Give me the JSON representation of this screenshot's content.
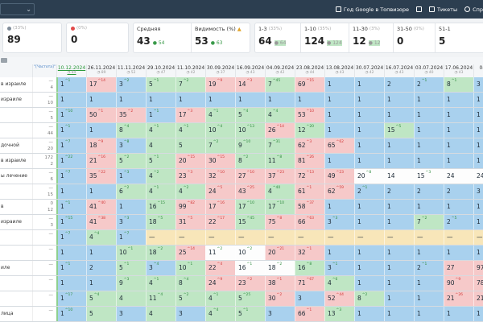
{
  "topbar": {
    "links": [
      {
        "label": "Год Google в Топвизоре",
        "icon": "list-icon"
      },
      {
        "label": "",
        "icon": "cloud-icon"
      },
      {
        "label": "Тикеты",
        "icon": "mail-icon"
      },
      {
        "label": "Спр",
        "icon": "help-icon"
      }
    ]
  },
  "stats": {
    "cards": [
      {
        "label": "(33%)",
        "value": "89",
        "dot": "#7f8c99"
      },
      {
        "label": "(0%)",
        "value": "0",
        "dot": "#e14a4a"
      },
      {
        "label": "Средняя",
        "value": "43",
        "delta": "54",
        "delta_color": "#3a9a4a"
      },
      {
        "label": "Видимость (%)",
        "value": "53",
        "delta": "63",
        "delta_color": "#3a9a4a"
      }
    ],
    "segments": [
      {
        "label": "1-3",
        "sub": "(33%)",
        "value": "64",
        "delta": "64"
      },
      {
        "label": "1-10",
        "sub": "(35%)",
        "value": "124",
        "delta": "124"
      },
      {
        "label": "11-30",
        "sub": "(3%)",
        "value": "12",
        "delta": "12"
      },
      {
        "label": "31-50",
        "sub": "(0%)",
        "value": "0",
        "delta": ""
      },
      {
        "label": "51-1",
        "sub": "",
        "value": "5",
        "delta": ""
      }
    ]
  },
  "header": {
    "freq_label": "\"[Частота]\"",
    "dates": [
      "10.12.2024",
      "26.11.2024",
      "11.11.2024",
      "29.10.2024",
      "11.10.2024",
      "30.09.2024",
      "16.09.2024",
      "04.09.2024",
      "23.08.2024",
      "13.08.2024",
      "30.07.2024",
      "16.07.2024",
      "03.07.2024",
      "17.06.2024",
      "04.06.2"
    ],
    "date_subs": [
      "84",
      "89",
      "52",
      "47",
      "42",
      "37",
      "43",
      "42",
      "44",
      "43",
      "42",
      "43",
      "40",
      "43",
      "38"
    ]
  },
  "rows": [
    {
      "kw": "в израиле",
      "freq": [
        "—",
        "4"
      ],
      "cells": [
        [
          "1",
          "^1",
          "b"
        ],
        [
          "17",
          "^14",
          "p"
        ],
        [
          "3",
          "^2",
          "b"
        ],
        [
          "5",
          "^1",
          "g"
        ],
        [
          "7",
          "^2",
          "g"
        ],
        [
          "19",
          "^9",
          "p"
        ],
        [
          "14",
          "^3",
          "p"
        ],
        [
          "7",
          "^45",
          "g"
        ],
        [
          "69",
          "^15",
          "p"
        ],
        [
          "1",
          "",
          "b"
        ],
        [
          "1",
          "",
          "b"
        ],
        [
          "2",
          "",
          "b"
        ],
        [
          "2",
          "^1",
          "b"
        ],
        [
          "8",
          "^1",
          "g"
        ],
        [
          "3",
          "",
          "b"
        ]
      ]
    },
    {
      "kw": "израиле",
      "freq": [
        "—",
        "10"
      ],
      "cells": [
        [
          "1",
          "",
          "b"
        ],
        [
          "1",
          "",
          "b"
        ],
        [
          "1",
          "",
          "b"
        ],
        [
          "1",
          "",
          "b"
        ],
        [
          "1",
          "",
          "b"
        ],
        [
          "1",
          "",
          "b"
        ],
        [
          "1",
          "",
          "b"
        ],
        [
          "1",
          "",
          "b"
        ],
        [
          "1",
          "",
          "b"
        ],
        [
          "1",
          "",
          "b"
        ],
        [
          "1",
          "",
          "b"
        ],
        [
          "1",
          "",
          "b"
        ],
        [
          "1",
          "",
          "b"
        ],
        [
          "1",
          "",
          "b"
        ],
        [
          "1",
          "",
          "b"
        ]
      ]
    },
    {
      "kw": "",
      "freq": [
        "—",
        "5"
      ],
      "cells": [
        [
          "1",
          "^10",
          "b"
        ],
        [
          "50",
          "^1",
          "p"
        ],
        [
          "35",
          "^2",
          "p"
        ],
        [
          "1",
          "^1",
          "b"
        ],
        [
          "17",
          "^3",
          "p"
        ],
        [
          "4",
          "^1",
          "g"
        ],
        [
          "5",
          "^4",
          "g"
        ],
        [
          "4",
          "^4",
          "g"
        ],
        [
          "53",
          "^10",
          "p"
        ],
        [
          "1",
          "",
          "b"
        ],
        [
          "1",
          "",
          "b"
        ],
        [
          "1",
          "",
          "b"
        ],
        [
          "1",
          "",
          "b"
        ],
        [
          "1",
          "",
          "b"
        ],
        [
          "1",
          "",
          "b"
        ]
      ]
    },
    {
      "kw": "",
      "freq": [
        "—",
        "44"
      ],
      "cells": [
        [
          "1",
          "^1",
          "b"
        ],
        [
          "1",
          "",
          "b"
        ],
        [
          "8",
          "^4",
          "g"
        ],
        [
          "4",
          "^1",
          "g"
        ],
        [
          "4",
          "^1",
          "g"
        ],
        [
          "10",
          "^4",
          "g"
        ],
        [
          "10",
          "^13",
          "g"
        ],
        [
          "26",
          "^14",
          "p"
        ],
        [
          "12",
          "^20",
          "g"
        ],
        [
          "1",
          "",
          "b"
        ],
        [
          "1",
          "",
          "b"
        ],
        [
          "15",
          "^5",
          "g"
        ],
        [
          "1",
          "",
          "b"
        ],
        [
          "1",
          "",
          "b"
        ],
        [
          "1",
          "",
          "b"
        ]
      ]
    },
    {
      "kw": "дочной",
      "freq": [
        "—",
        "20"
      ],
      "cells": [
        [
          "1",
          "^7",
          "b"
        ],
        [
          "18",
          "^9",
          "p"
        ],
        [
          "3",
          "^8",
          "b"
        ],
        [
          "4",
          "",
          "g"
        ],
        [
          "5",
          "",
          "g"
        ],
        [
          "7",
          "^2",
          "g"
        ],
        [
          "9",
          "^10",
          "g"
        ],
        [
          "7",
          "^31",
          "g"
        ],
        [
          "62",
          "^3",
          "p"
        ],
        [
          "65",
          "^62",
          "p"
        ],
        [
          "1",
          "",
          "b"
        ],
        [
          "1",
          "",
          "b"
        ],
        [
          "1",
          "",
          "b"
        ],
        [
          "1",
          "",
          "b"
        ],
        [
          "1",
          "",
          "b"
        ]
      ]
    },
    {
      "kw": "в израиле",
      "freq": [
        "172",
        "2"
      ],
      "cells": [
        [
          "1",
          "^22",
          "b"
        ],
        [
          "21",
          "^16",
          "p"
        ],
        [
          "5",
          "^2",
          "g"
        ],
        [
          "5",
          "^1",
          "g"
        ],
        [
          "20",
          "^15",
          "p"
        ],
        [
          "30",
          "^15",
          "p"
        ],
        [
          "8",
          "^2",
          "g"
        ],
        [
          "11",
          "^8",
          "g"
        ],
        [
          "81",
          "^26",
          "p"
        ],
        [
          "1",
          "",
          "b"
        ],
        [
          "1",
          "",
          "b"
        ],
        [
          "1",
          "",
          "b"
        ],
        [
          "1",
          "",
          "b"
        ],
        [
          "1",
          "",
          "b"
        ],
        [
          "1",
          "",
          "b"
        ]
      ]
    },
    {
      "kw": "ы лечение",
      "freq": [
        "—",
        "6"
      ],
      "cells": [
        [
          "1",
          "^7",
          "b"
        ],
        [
          "35",
          "^22",
          "p"
        ],
        [
          "1",
          "^3",
          "b"
        ],
        [
          "4",
          "^2",
          "g"
        ],
        [
          "23",
          "^3",
          "p"
        ],
        [
          "32",
          "^10",
          "p"
        ],
        [
          "27",
          "^10",
          "p"
        ],
        [
          "37",
          "^23",
          "p"
        ],
        [
          "72",
          "^13",
          "p"
        ],
        [
          "49",
          "^23",
          "p"
        ],
        [
          "20",
          "^8",
          "w"
        ],
        [
          "14",
          "",
          "w"
        ],
        [
          "15",
          "^3",
          "w"
        ],
        [
          "24",
          "",
          "w"
        ],
        [
          "24",
          "",
          "w"
        ]
      ]
    },
    {
      "kw": "",
      "freq": [
        "—",
        "15"
      ],
      "cells": [
        [
          "1",
          "",
          "b"
        ],
        [
          "1",
          "",
          "b"
        ],
        [
          "6",
          "^2",
          "g"
        ],
        [
          "4",
          "^1",
          "g"
        ],
        [
          "4",
          "^2",
          "g"
        ],
        [
          "24",
          "^5",
          "p"
        ],
        [
          "43",
          "^25",
          "p"
        ],
        [
          "4",
          "^40",
          "g"
        ],
        [
          "61",
          "^1",
          "p"
        ],
        [
          "62",
          "^59",
          "p"
        ],
        [
          "2",
          "^1",
          "b"
        ],
        [
          "2",
          "",
          "b"
        ],
        [
          "2",
          "",
          "b"
        ],
        [
          "2",
          "",
          "b"
        ],
        [
          "3",
          "",
          "b"
        ]
      ]
    },
    {
      "kw": "в",
      "freq": [
        "0",
        "12"
      ],
      "cells": [
        [
          "1",
          "^1",
          "b"
        ],
        [
          "41",
          "^40",
          "p"
        ],
        [
          "1",
          "",
          "b"
        ],
        [
          "16",
          "^15",
          "g"
        ],
        [
          "99",
          "^82",
          "p"
        ],
        [
          "17",
          "^16",
          "p"
        ],
        [
          "17",
          "^10",
          "g"
        ],
        [
          "17",
          "^10",
          "g"
        ],
        [
          "58",
          "^37",
          "p"
        ],
        [
          "1",
          "",
          "b"
        ],
        [
          "1",
          "",
          "b"
        ],
        [
          "1",
          "",
          "b"
        ],
        [
          "1",
          "",
          "b"
        ],
        [
          "1",
          "",
          "b"
        ],
        [
          "1",
          "",
          "b"
        ]
      ]
    },
    {
      "kw": "израиле",
      "freq": [
        "—",
        "3"
      ],
      "cells": [
        [
          "1",
          "^15",
          "b"
        ],
        [
          "41",
          "^38",
          "p"
        ],
        [
          "3",
          "^3",
          "b"
        ],
        [
          "18",
          "^5",
          "g"
        ],
        [
          "31",
          "^5",
          "p"
        ],
        [
          "22",
          "^17",
          "p"
        ],
        [
          "15",
          "^45",
          "g"
        ],
        [
          "75",
          "^8",
          "p"
        ],
        [
          "66",
          "^63",
          "p"
        ],
        [
          "3",
          "^3",
          "b"
        ],
        [
          "1",
          "",
          "b"
        ],
        [
          "1",
          "",
          "b"
        ],
        [
          "7",
          "^2",
          "g"
        ],
        [
          "2",
          "^5",
          "b"
        ],
        [
          "1",
          "",
          "b"
        ]
      ]
    },
    {
      "kw": "",
      "freq": [
        "—",
        ""
      ],
      "cells": [
        [
          "1",
          "^7",
          "b"
        ],
        [
          "4",
          "^4",
          "g"
        ],
        [
          "1",
          "^7",
          "b"
        ],
        [
          "—",
          "",
          "y"
        ],
        [
          "—",
          "",
          "y"
        ],
        [
          "—",
          "",
          "y"
        ],
        [
          "—",
          "",
          "y"
        ],
        [
          "—",
          "",
          "y"
        ],
        [
          "—",
          "",
          "y"
        ],
        [
          "—",
          "",
          "y"
        ],
        [
          "—",
          "",
          "y"
        ],
        [
          "—",
          "",
          "y"
        ],
        [
          "—",
          "",
          "y"
        ],
        [
          "—",
          "",
          "y"
        ],
        [
          "—",
          "",
          "y"
        ]
      ]
    },
    {
      "kw": "",
      "freq": [
        "—",
        ""
      ],
      "cells": [
        [
          "1",
          "",
          "b"
        ],
        [
          "1",
          "",
          "b"
        ],
        [
          "10",
          "^1",
          "g"
        ],
        [
          "18",
          "^2",
          "g"
        ],
        [
          "25",
          "^14",
          "p"
        ],
        [
          "11",
          "^2",
          "w"
        ],
        [
          "10",
          "^2",
          "w"
        ],
        [
          "20",
          "^21",
          "p"
        ],
        [
          "32",
          "^1",
          "p"
        ],
        [
          "1",
          "",
          "b"
        ],
        [
          "1",
          "",
          "b"
        ],
        [
          "1",
          "",
          "b"
        ],
        [
          "1",
          "",
          "b"
        ],
        [
          "1",
          "",
          "b"
        ],
        [
          "1",
          "",
          "b"
        ]
      ]
    },
    {
      "kw": "иле",
      "freq": [
        "—",
        ""
      ],
      "cells": [
        [
          "1",
          "^1",
          "b"
        ],
        [
          "2",
          "",
          "b"
        ],
        [
          "5",
          "^1",
          "g"
        ],
        [
          "3",
          "^4",
          "b"
        ],
        [
          "10",
          "^1",
          "g"
        ],
        [
          "22",
          "^4",
          "p"
        ],
        [
          "16",
          "^1",
          "w"
        ],
        [
          "18",
          "^2",
          "w"
        ],
        [
          "16",
          "^8",
          "g"
        ],
        [
          "3",
          "^1",
          "b"
        ],
        [
          "1",
          "",
          "b"
        ],
        [
          "1",
          "",
          "b"
        ],
        [
          "2",
          "^1",
          "b"
        ],
        [
          "27",
          "",
          "p"
        ],
        [
          "97",
          "",
          "p"
        ]
      ]
    },
    {
      "kw": "",
      "freq": [
        "—",
        ""
      ],
      "cells": [
        [
          "1",
          "",
          "b"
        ],
        [
          "1",
          "",
          "b"
        ],
        [
          "9",
          "^3",
          "g"
        ],
        [
          "4",
          "^1",
          "g"
        ],
        [
          "8",
          "^4",
          "g"
        ],
        [
          "24",
          "^9",
          "p"
        ],
        [
          "23",
          "^2",
          "p"
        ],
        [
          "38",
          "^1",
          "p"
        ],
        [
          "71",
          "^67",
          "p"
        ],
        [
          "4",
          "^6",
          "g"
        ],
        [
          "1",
          "",
          "b"
        ],
        [
          "1",
          "",
          "b"
        ],
        [
          "1",
          "",
          "b"
        ],
        [
          "90",
          "^9",
          "p"
        ],
        [
          "78",
          "",
          "p"
        ]
      ]
    },
    {
      "kw": "",
      "freq": [
        "—",
        ""
      ],
      "cells": [
        [
          "1",
          "^17",
          "b"
        ],
        [
          "5",
          "^4",
          "g"
        ],
        [
          "4",
          "",
          "g"
        ],
        [
          "11",
          "^4",
          "g"
        ],
        [
          "5",
          "^2",
          "g"
        ],
        [
          "4",
          "^1",
          "g"
        ],
        [
          "5",
          "^25",
          "g"
        ],
        [
          "30",
          "^2",
          "p"
        ],
        [
          "3",
          "",
          "b"
        ],
        [
          "52",
          "^44",
          "p"
        ],
        [
          "8",
          "^2",
          "g"
        ],
        [
          "1",
          "",
          "b"
        ],
        [
          "1",
          "",
          "b"
        ],
        [
          "21",
          "^26",
          "p"
        ],
        [
          "21",
          "",
          "p"
        ]
      ]
    },
    {
      "kw": "лица",
      "freq": [
        "—",
        ""
      ],
      "cells": [
        [
          "1",
          "^10",
          "b"
        ],
        [
          "5",
          "",
          "g"
        ],
        [
          "3",
          "",
          "b"
        ],
        [
          "4",
          "",
          "g"
        ],
        [
          "3",
          "",
          "b"
        ],
        [
          "4",
          "^4",
          "g"
        ],
        [
          "5",
          "^1",
          "g"
        ],
        [
          "3",
          "",
          "b"
        ],
        [
          "66",
          "^1",
          "p"
        ],
        [
          "13",
          "^3",
          "g"
        ],
        [
          "1",
          "",
          "b"
        ],
        [
          "1",
          "",
          "b"
        ],
        [
          "1",
          "",
          "b"
        ],
        [
          "1",
          "",
          "b"
        ],
        [
          "1",
          "",
          "b"
        ]
      ]
    }
  ]
}
